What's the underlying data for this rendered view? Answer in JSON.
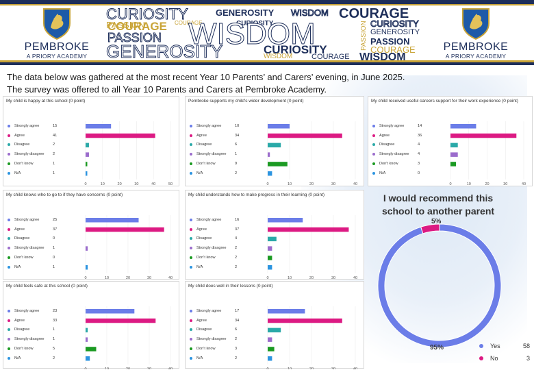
{
  "header": {
    "school_name": "PEMBROKE",
    "school_sub": "A PRIORY ACADEMY",
    "word_cloud": [
      {
        "text": "CURIOSITY",
        "style": "outline-navy"
      },
      {
        "text": "GENEROSITY",
        "style": "bold-navy"
      },
      {
        "text": "WISDOM",
        "style": "outline-navy"
      },
      {
        "text": "COURAGE",
        "style": "bold-navy"
      },
      {
        "text": "PASSION",
        "style": "gold"
      },
      {
        "text": "COURAGE",
        "style": "gold"
      },
      {
        "text": "CURIOSITY",
        "style": "bold-navy"
      },
      {
        "text": "COURAGE",
        "style": "bold-gold"
      },
      {
        "text": "PASSION",
        "style": "outline-navy"
      },
      {
        "text": "WISDOM",
        "style": "outline-navy"
      },
      {
        "text": "PASSION",
        "style": "gold"
      },
      {
        "text": "CURIOSITY",
        "style": "outline-navy"
      },
      {
        "text": "GENEROSITY",
        "style": "navy"
      },
      {
        "text": "PASSION",
        "style": "bold-navy"
      },
      {
        "text": "GENEROSITY",
        "style": "outline-navy"
      },
      {
        "text": "CURIOSITY",
        "style": "bold-navy"
      },
      {
        "text": "COURAGE",
        "style": "gold"
      },
      {
        "text": "WISDOM",
        "style": "gold"
      },
      {
        "text": "COURAGE",
        "style": "navy"
      },
      {
        "text": "WISDOM",
        "style": "bold-navy"
      }
    ]
  },
  "intro": {
    "line1": "The data below was gathered at the most recent Year 10 Parents’ and Carers’ evening, in June 2025.",
    "line2": "The survey was offered to all Year 10 Parents and Carers at Pembroke Academy."
  },
  "colors": {
    "strongly_agree": "#6b7de8",
    "agree": "#dc1a83",
    "disagree": "#2aa9a8",
    "strongly_disagree": "#9b6ccc",
    "dont_know": "#1b9a22",
    "na": "#2c94e0",
    "yes": "#6b7de8",
    "no": "#dc1a83"
  },
  "chart_data": [
    {
      "type": "bar",
      "title": "My child is happy at this school (0 point)",
      "categories": [
        "Strongly agree",
        "Agree",
        "Disagree",
        "Strongly disagree",
        "Don't know",
        "N/A"
      ],
      "values": [
        15,
        41,
        2,
        2,
        1,
        1
      ],
      "xlim": [
        0,
        50
      ],
      "xticks": [
        0,
        10,
        20,
        30,
        40,
        50
      ]
    },
    {
      "type": "bar",
      "title": "Pembroke supports my child's wider development (0 point)",
      "categories": [
        "Strongly agree",
        "Agree",
        "Disagree",
        "Strongly disagree",
        "Don't know",
        "N/A"
      ],
      "values": [
        10,
        34,
        6,
        1,
        9,
        2
      ],
      "xlim": [
        0,
        40
      ],
      "xticks": [
        0,
        10,
        20,
        30,
        40
      ]
    },
    {
      "type": "bar",
      "title": "My child received useful careers support for their work experience (0 point)",
      "categories": [
        "Strongly agree",
        "Agree",
        "Disagree",
        "Strongly disagree",
        "Don't know",
        "N/A"
      ],
      "values": [
        14,
        36,
        4,
        4,
        3,
        0
      ],
      "xlim": [
        0,
        40
      ],
      "xticks": [
        0,
        10,
        20,
        30,
        40
      ]
    },
    {
      "type": "bar",
      "title": "My child knows who to go to if they have concerns (0 point)",
      "categories": [
        "Strongly agree",
        "Agree",
        "Disagree",
        "Strongly disagree",
        "Don't know",
        "N/A"
      ],
      "values": [
        25,
        37,
        0,
        1,
        0,
        1
      ],
      "xlim": [
        0,
        40
      ],
      "xticks": [
        0,
        10,
        20,
        30,
        40
      ]
    },
    {
      "type": "bar",
      "title": "My child understands how to make progress in their learning (0 point)",
      "categories": [
        "Strongly agree",
        "Agree",
        "Disagree",
        "Strongly disagree",
        "Don't know",
        "N/A"
      ],
      "values": [
        16,
        37,
        4,
        2,
        2,
        2
      ],
      "xlim": [
        0,
        40
      ],
      "xticks": [
        0,
        10,
        20,
        30,
        40
      ]
    },
    {
      "type": "bar",
      "title": "My child feels safe at this school (0 point)",
      "categories": [
        "Strongly agree",
        "Agree",
        "Disagree",
        "Strongly disagree",
        "Don't know",
        "N/A"
      ],
      "values": [
        23,
        33,
        1,
        1,
        5,
        2
      ],
      "xlim": [
        0,
        40
      ],
      "xticks": [
        0,
        10,
        20,
        30,
        40
      ]
    },
    {
      "type": "bar",
      "title": "My child does well in their lessons (0 point)",
      "categories": [
        "Strongly agree",
        "Agree",
        "Disagree",
        "Strongly disagree",
        "Don't know",
        "N/A"
      ],
      "values": [
        17,
        34,
        6,
        2,
        3,
        2
      ],
      "xlim": [
        0,
        40
      ],
      "xticks": [
        0,
        10,
        20,
        30,
        40
      ]
    },
    {
      "type": "pie",
      "title": "I would recommend this school to another parent",
      "categories": [
        "Yes",
        "No"
      ],
      "values": [
        58,
        3
      ],
      "percent_labels": [
        "95%",
        "5%"
      ]
    }
  ]
}
